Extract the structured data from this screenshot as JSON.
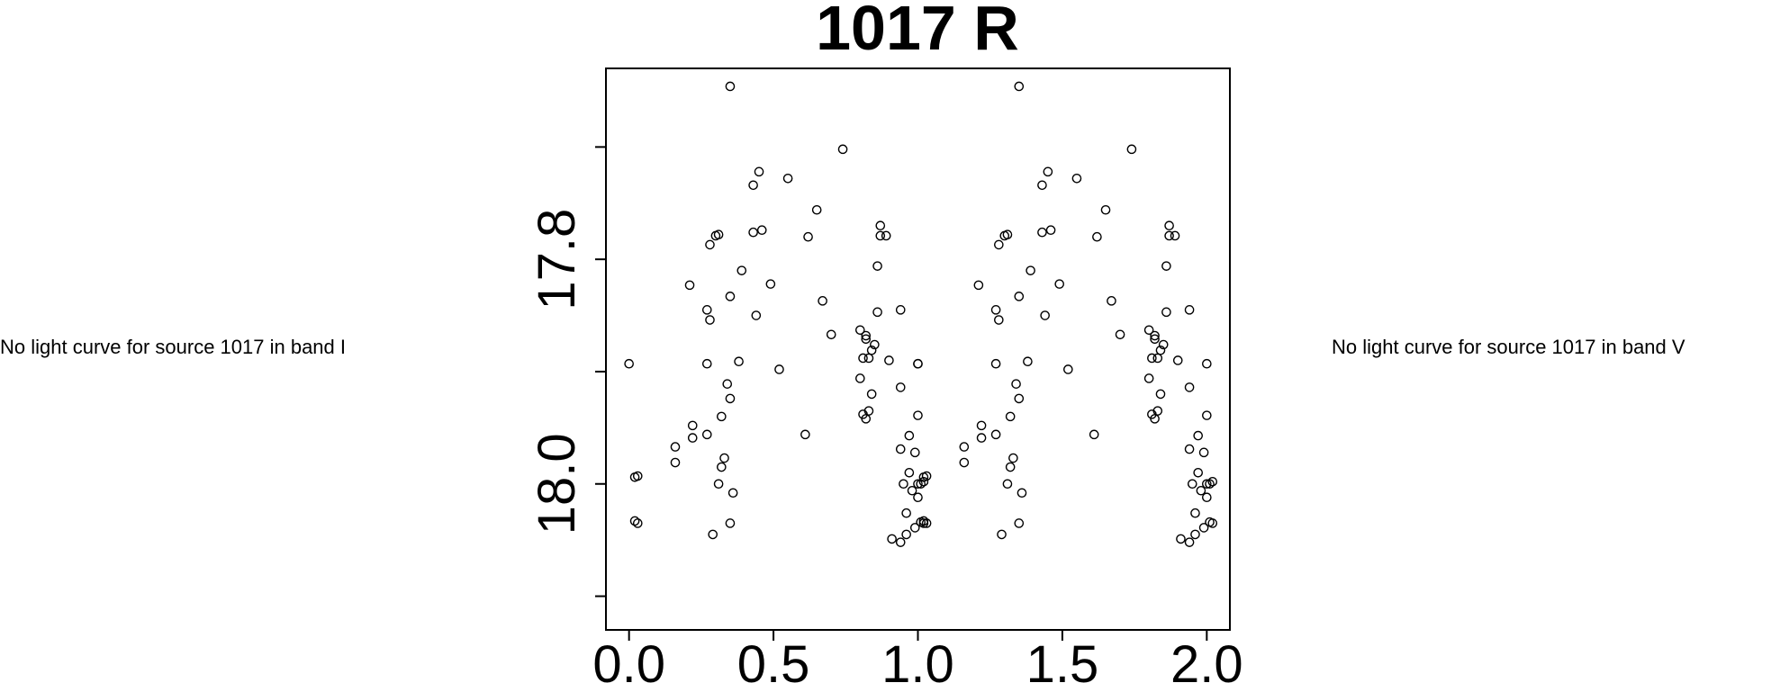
{
  "panels": {
    "left_message": "No light curve for source 1017 in band I",
    "right_message": "No light curve for source 1017 in band V"
  },
  "chart_data": {
    "type": "scatter",
    "title": "1017 R",
    "xlabel": "",
    "ylabel": "",
    "xlim": [
      -0.08,
      2.08
    ],
    "ylim": [
      18.13,
      17.63
    ],
    "y_inverted": true,
    "x_ticks": [
      "0.0",
      "0.5",
      "1.0",
      "1.5",
      "2.0"
    ],
    "y_ticks": [
      {
        "value": 17.7,
        "label": ""
      },
      {
        "value": 17.8,
        "label": "17.8"
      },
      {
        "value": 17.9,
        "label": ""
      },
      {
        "value": 18.0,
        "label": "18.0"
      },
      {
        "value": 18.1,
        "label": ""
      }
    ],
    "marker": "open-circle",
    "grid": false,
    "points": [
      [
        0.0,
        17.893
      ],
      [
        0.02,
        17.994
      ],
      [
        0.03,
        17.993
      ],
      [
        0.02,
        18.033
      ],
      [
        0.03,
        18.035
      ],
      [
        0.16,
        17.967
      ],
      [
        0.16,
        17.981
      ],
      [
        0.21,
        17.823
      ],
      [
        0.22,
        17.959
      ],
      [
        0.22,
        17.948
      ],
      [
        0.27,
        17.956
      ],
      [
        0.27,
        17.845
      ],
      [
        0.28,
        17.854
      ],
      [
        0.27,
        17.893
      ],
      [
        0.28,
        17.787
      ],
      [
        0.3,
        17.779
      ],
      [
        0.31,
        17.778
      ],
      [
        0.29,
        18.045
      ],
      [
        0.31,
        18.0
      ],
      [
        0.32,
        17.985
      ],
      [
        0.32,
        17.94
      ],
      [
        0.33,
        17.977
      ],
      [
        0.34,
        17.911
      ],
      [
        0.35,
        17.924
      ],
      [
        0.35,
        17.833
      ],
      [
        0.35,
        18.035
      ],
      [
        0.36,
        18.008
      ],
      [
        0.35,
        17.646
      ],
      [
        0.38,
        17.891
      ],
      [
        0.39,
        17.81
      ],
      [
        0.43,
        17.734
      ],
      [
        0.43,
        17.776
      ],
      [
        0.44,
        17.85
      ],
      [
        0.45,
        17.722
      ],
      [
        0.46,
        17.774
      ],
      [
        0.49,
        17.822
      ],
      [
        0.52,
        17.898
      ],
      [
        0.55,
        17.728
      ],
      [
        0.61,
        17.956
      ],
      [
        0.62,
        17.78
      ],
      [
        0.65,
        17.756
      ],
      [
        0.67,
        17.837
      ],
      [
        0.7,
        17.867
      ],
      [
        0.74,
        17.702
      ],
      [
        0.8,
        17.863
      ],
      [
        0.8,
        17.906
      ],
      [
        0.81,
        17.888
      ],
      [
        0.81,
        17.938
      ],
      [
        0.82,
        17.871
      ],
      [
        0.82,
        17.942
      ],
      [
        0.82,
        17.868
      ],
      [
        0.83,
        17.935
      ],
      [
        0.83,
        17.888
      ],
      [
        0.84,
        17.92
      ],
      [
        0.84,
        17.881
      ],
      [
        0.85,
        17.876
      ],
      [
        0.86,
        17.847
      ],
      [
        0.86,
        17.806
      ],
      [
        0.87,
        17.77
      ],
      [
        0.87,
        17.779
      ],
      [
        0.89,
        17.779
      ],
      [
        0.9,
        17.89
      ],
      [
        0.91,
        18.049
      ],
      [
        0.94,
        17.914
      ],
      [
        0.94,
        18.052
      ],
      [
        0.94,
        17.845
      ],
      [
        0.94,
        17.969
      ],
      [
        0.95,
        18.0
      ],
      [
        0.96,
        18.026
      ],
      [
        0.96,
        18.045
      ],
      [
        0.97,
        17.957
      ],
      [
        0.97,
        17.99
      ],
      [
        0.98,
        18.006
      ],
      [
        0.99,
        17.972
      ],
      [
        0.99,
        18.039
      ],
      [
        1.0,
        18.0
      ],
      [
        1.0,
        18.012
      ],
      [
        1.0,
        17.893
      ],
      [
        1.0,
        17.939
      ],
      [
        1.01,
        18.0
      ],
      [
        1.01,
        18.034
      ],
      [
        1.02,
        17.998
      ],
      [
        1.02,
        18.035
      ]
    ],
    "repeat_offset": 1.0
  }
}
